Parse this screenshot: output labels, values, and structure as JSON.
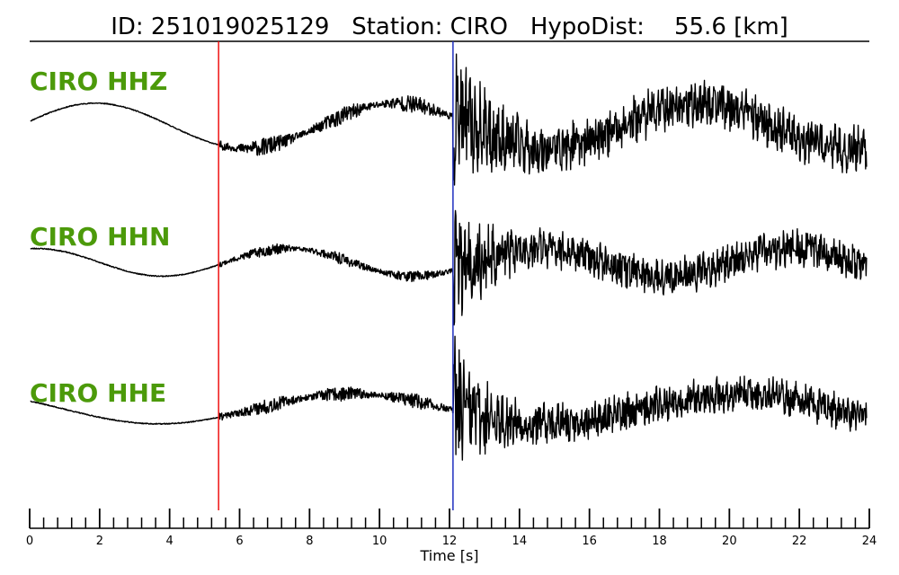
{
  "header": {
    "id_text": "ID: 251019025129",
    "station_text": "Station: CIRO",
    "hypodist_text": "HypoDist:    55.6 [km]"
  },
  "chart_data": {
    "type": "line",
    "title": "ID: 251019025129   Station: CIRO   HypoDist:    55.6 [km]",
    "xlabel": "Time [s]",
    "xlim": [
      0,
      24
    ],
    "x_major_ticks": [
      0,
      2,
      4,
      6,
      8,
      10,
      12,
      14,
      16,
      18,
      20,
      22,
      24
    ],
    "x_tick_labels": [
      "0",
      "2",
      "4",
      "6",
      "8",
      "10",
      "12",
      "14",
      "16",
      "18",
      "20",
      "22",
      "24"
    ],
    "x_minor_step": 0.4,
    "picks": [
      {
        "phase": "P",
        "time": 5.4,
        "color": "#ee1111"
      },
      {
        "phase": "S",
        "time": 12.1,
        "color": "#1f2fbf"
      }
    ],
    "trace_color": "#000000",
    "label_color": "#4c9a0a",
    "series": [
      {
        "name": "CIRO HHZ",
        "seed": 11,
        "pre_noise": 0.02,
        "p_noise": 0.35,
        "s_amp": 2.4,
        "coda": 0.75,
        "drift_amp": 0.9,
        "drift_period": 8.6,
        "drift_phase": 0.2
      },
      {
        "name": "CIRO HHN",
        "seed": 23,
        "pre_noise": 0.02,
        "p_noise": 0.22,
        "s_amp": 2.1,
        "coda": 0.6,
        "drift_amp": 0.55,
        "drift_period": 7.2,
        "drift_phase": 1.4
      },
      {
        "name": "CIRO HHE",
        "seed": 37,
        "pre_noise": 0.02,
        "p_noise": 0.3,
        "s_amp": 2.3,
        "coda": 0.6,
        "drift_amp": 0.6,
        "drift_period": 11.0,
        "drift_phase": 2.6
      }
    ]
  }
}
